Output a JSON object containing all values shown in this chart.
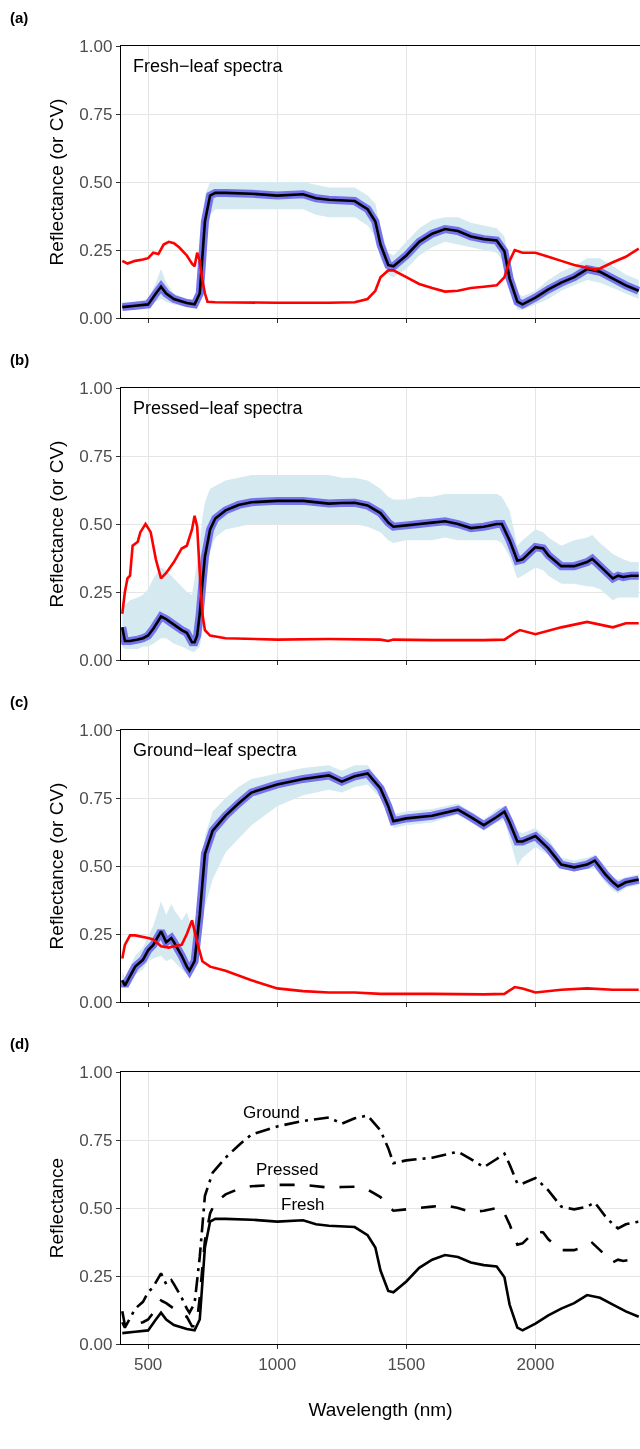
{
  "chart_data": [
    {
      "type": "line",
      "title": "Fresh−leaf spectra",
      "ylabel": "Reflectance (or CV)",
      "annotations": [
        "(a)"
      ],
      "xlim": [
        395,
        2405
      ],
      "ylim": [
        0,
        1
      ],
      "xticks": [
        500,
        1000,
        1500,
        2000
      ],
      "yticks": [
        {
          "value": 0,
          "label": "0.00"
        },
        {
          "value": 0.25,
          "label": "0.25"
        },
        {
          "value": 0.5,
          "label": "0.50"
        },
        {
          "value": 0.75,
          "label": "0.75"
        },
        {
          "value": 1,
          "label": "1.00"
        }
      ],
      "grid": true,
      "tick_labels": "y",
      "series": [
        {
          "color": "#ff0000",
          "x": [
            400,
            420,
            450,
            480,
            500,
            520,
            540,
            560,
            580,
            600,
            620,
            650,
            670,
            680,
            690,
            700,
            710,
            720,
            730,
            760,
            1000,
            1200,
            1300,
            1350,
            1380,
            1400,
            1430,
            1450,
            1500,
            1550,
            1600,
            1650,
            1700,
            1750,
            1800,
            1850,
            1880,
            1900,
            1920,
            1950,
            2000,
            2050,
            2100,
            2150,
            2200,
            2230,
            2250,
            2300,
            2350,
            2400
          ],
          "values": [
            0.21,
            0.2,
            0.21,
            0.215,
            0.22,
            0.24,
            0.235,
            0.27,
            0.28,
            0.275,
            0.26,
            0.23,
            0.2,
            0.19,
            0.24,
            0.21,
            0.14,
            0.09,
            0.06,
            0.058,
            0.056,
            0.056,
            0.058,
            0.07,
            0.1,
            0.15,
            0.175,
            0.175,
            0.15,
            0.125,
            0.11,
            0.097,
            0.1,
            0.11,
            0.115,
            0.12,
            0.15,
            0.21,
            0.25,
            0.24,
            0.24,
            0.225,
            0.21,
            0.195,
            0.185,
            0.178,
            0.182,
            0.205,
            0.225,
            0.255
          ]
        },
        {
          "color": "#000000",
          "x": [
            400,
            450,
            500,
            530,
            550,
            570,
            600,
            650,
            680,
            700,
            720,
            740,
            760,
            800,
            900,
            1000,
            1100,
            1150,
            1200,
            1300,
            1350,
            1380,
            1400,
            1430,
            1450,
            1500,
            1550,
            1600,
            1650,
            1700,
            1750,
            1800,
            1850,
            1880,
            1900,
            1930,
            1950,
            2000,
            2050,
            2100,
            2150,
            2200,
            2250,
            2300,
            2350,
            2400
          ],
          "values": [
            0.04,
            0.045,
            0.05,
            0.09,
            0.115,
            0.09,
            0.07,
            0.055,
            0.05,
            0.09,
            0.355,
            0.45,
            0.46,
            0.46,
            0.457,
            0.45,
            0.455,
            0.44,
            0.435,
            0.43,
            0.4,
            0.355,
            0.27,
            0.195,
            0.19,
            0.23,
            0.28,
            0.31,
            0.327,
            0.32,
            0.3,
            0.29,
            0.285,
            0.245,
            0.145,
            0.06,
            0.05,
            0.075,
            0.105,
            0.13,
            0.15,
            0.18,
            0.17,
            0.145,
            0.12,
            0.1
          ],
          "lower": [
            0.03,
            0.035,
            0.04,
            0.06,
            0.07,
            0.06,
            0.05,
            0.04,
            0.04,
            0.06,
            0.25,
            0.38,
            0.4,
            0.4,
            0.4,
            0.4,
            0.4,
            0.38,
            0.37,
            0.37,
            0.34,
            0.3,
            0.22,
            0.16,
            0.15,
            0.18,
            0.23,
            0.26,
            0.28,
            0.27,
            0.26,
            0.25,
            0.24,
            0.2,
            0.1,
            0.03,
            0.03,
            0.05,
            0.07,
            0.1,
            0.12,
            0.14,
            0.13,
            0.11,
            0.09,
            0.07
          ],
          "upper": [
            0.06,
            0.06,
            0.07,
            0.13,
            0.18,
            0.13,
            0.09,
            0.07,
            0.07,
            0.14,
            0.45,
            0.5,
            0.5,
            0.5,
            0.5,
            0.5,
            0.5,
            0.49,
            0.48,
            0.48,
            0.45,
            0.42,
            0.33,
            0.24,
            0.23,
            0.28,
            0.33,
            0.36,
            0.37,
            0.37,
            0.35,
            0.34,
            0.33,
            0.3,
            0.2,
            0.09,
            0.08,
            0.1,
            0.14,
            0.17,
            0.19,
            0.22,
            0.22,
            0.19,
            0.16,
            0.14
          ]
        }
      ]
    },
    {
      "type": "line",
      "title": "Pressed−leaf spectra",
      "ylabel": "Reflectance (or CV)",
      "annotations": [
        "(b)"
      ],
      "xlim": [
        395,
        2405
      ],
      "ylim": [
        0,
        1
      ],
      "xticks": [
        500,
        1000,
        1500,
        2000
      ],
      "yticks": [
        {
          "value": 0,
          "label": "0.00"
        },
        {
          "value": 0.25,
          "label": "0.25"
        },
        {
          "value": 0.5,
          "label": "0.50"
        },
        {
          "value": 0.75,
          "label": "0.75"
        },
        {
          "value": 1,
          "label": "1.00"
        }
      ],
      "grid": true,
      "tick_labels": "y",
      "series": [
        {
          "color": "#ff0000",
          "x": [
            400,
            410,
            420,
            430,
            440,
            460,
            470,
            480,
            490,
            510,
            530,
            550,
            570,
            600,
            630,
            650,
            670,
            680,
            690,
            700,
            710,
            720,
            740,
            800,
            1000,
            1200,
            1400,
            1430,
            1450,
            1600,
            1800,
            1880,
            1920,
            1940,
            2000,
            2100,
            2200,
            2300,
            2350,
            2400
          ],
          "values": [
            0.17,
            0.25,
            0.3,
            0.31,
            0.42,
            0.435,
            0.47,
            0.485,
            0.5,
            0.47,
            0.37,
            0.3,
            0.32,
            0.36,
            0.41,
            0.42,
            0.48,
            0.53,
            0.49,
            0.32,
            0.17,
            0.11,
            0.09,
            0.08,
            0.075,
            0.077,
            0.075,
            0.07,
            0.075,
            0.073,
            0.073,
            0.075,
            0.1,
            0.11,
            0.095,
            0.12,
            0.14,
            0.12,
            0.135,
            0.135
          ]
        },
        {
          "color": "#000000",
          "x": [
            400,
            410,
            430,
            460,
            480,
            500,
            520,
            550,
            570,
            600,
            630,
            650,
            670,
            680,
            690,
            700,
            710,
            720,
            740,
            760,
            800,
            850,
            900,
            1000,
            1100,
            1200,
            1250,
            1300,
            1350,
            1400,
            1430,
            1450,
            1500,
            1550,
            1600,
            1650,
            1700,
            1750,
            1800,
            1850,
            1870,
            1900,
            1930,
            1950,
            2000,
            2030,
            2050,
            2100,
            2150,
            2200,
            2220,
            2250,
            2300,
            2320,
            2340,
            2370,
            2400
          ],
          "values": [
            0.12,
            0.07,
            0.07,
            0.075,
            0.08,
            0.09,
            0.115,
            0.16,
            0.15,
            0.13,
            0.11,
            0.1,
            0.065,
            0.065,
            0.09,
            0.17,
            0.28,
            0.38,
            0.48,
            0.52,
            0.55,
            0.57,
            0.58,
            0.585,
            0.585,
            0.575,
            0.577,
            0.578,
            0.568,
            0.54,
            0.505,
            0.49,
            0.495,
            0.5,
            0.505,
            0.51,
            0.5,
            0.485,
            0.49,
            0.5,
            0.5,
            0.44,
            0.365,
            0.37,
            0.415,
            0.41,
            0.385,
            0.345,
            0.345,
            0.36,
            0.372,
            0.345,
            0.3,
            0.31,
            0.305,
            0.31,
            0.31
          ],
          "lower": [
            0.05,
            0.04,
            0.04,
            0.04,
            0.05,
            0.05,
            0.06,
            0.08,
            0.08,
            0.06,
            0.05,
            0.04,
            0.03,
            0.03,
            0.04,
            0.05,
            0.1,
            0.25,
            0.4,
            0.45,
            0.48,
            0.49,
            0.5,
            0.5,
            0.5,
            0.5,
            0.5,
            0.5,
            0.49,
            0.47,
            0.44,
            0.43,
            0.44,
            0.44,
            0.44,
            0.45,
            0.44,
            0.44,
            0.44,
            0.44,
            0.43,
            0.38,
            0.3,
            0.31,
            0.34,
            0.33,
            0.31,
            0.28,
            0.28,
            0.27,
            0.27,
            0.26,
            0.22,
            0.23,
            0.23,
            0.23,
            0.23
          ],
          "upper": [
            0.2,
            0.2,
            0.22,
            0.23,
            0.24,
            0.26,
            0.3,
            0.34,
            0.33,
            0.3,
            0.27,
            0.25,
            0.24,
            0.3,
            0.36,
            0.42,
            0.52,
            0.58,
            0.63,
            0.64,
            0.66,
            0.67,
            0.68,
            0.68,
            0.68,
            0.68,
            0.67,
            0.67,
            0.66,
            0.63,
            0.6,
            0.59,
            0.59,
            0.6,
            0.6,
            0.61,
            0.61,
            0.61,
            0.61,
            0.61,
            0.6,
            0.55,
            0.42,
            0.44,
            0.48,
            0.47,
            0.45,
            0.42,
            0.44,
            0.45,
            0.46,
            0.43,
            0.39,
            0.38,
            0.37,
            0.36,
            0.36
          ]
        }
      ]
    },
    {
      "type": "line",
      "title": "Ground−leaf spectra",
      "ylabel": "Reflectance (or CV)",
      "annotations": [
        "(c)"
      ],
      "xlim": [
        395,
        2405
      ],
      "ylim": [
        0,
        1
      ],
      "xticks": [
        500,
        1000,
        1500,
        2000
      ],
      "yticks": [
        {
          "value": 0,
          "label": "0.00"
        },
        {
          "value": 0.25,
          "label": "0.25"
        },
        {
          "value": 0.5,
          "label": "0.50"
        },
        {
          "value": 0.75,
          "label": "0.75"
        },
        {
          "value": 1,
          "label": "1.00"
        }
      ],
      "grid": true,
      "tick_labels": "y",
      "series": [
        {
          "color": "#ff0000",
          "x": [
            400,
            410,
            430,
            450,
            500,
            520,
            550,
            580,
            600,
            630,
            650,
            670,
            690,
            710,
            740,
            800,
            900,
            1000,
            1100,
            1200,
            1300,
            1400,
            1500,
            1600,
            1800,
            1880,
            1920,
            1950,
            2000,
            2100,
            2200,
            2300,
            2400
          ],
          "values": [
            0.16,
            0.21,
            0.245,
            0.245,
            0.235,
            0.23,
            0.205,
            0.2,
            0.205,
            0.21,
            0.25,
            0.3,
            0.22,
            0.15,
            0.13,
            0.115,
            0.08,
            0.05,
            0.04,
            0.035,
            0.035,
            0.03,
            0.03,
            0.03,
            0.028,
            0.03,
            0.055,
            0.05,
            0.035,
            0.045,
            0.05,
            0.045,
            0.045
          ]
        },
        {
          "color": "#000000",
          "x": [
            400,
            410,
            450,
            480,
            500,
            520,
            550,
            570,
            590,
            600,
            630,
            650,
            660,
            680,
            700,
            720,
            750,
            800,
            850,
            900,
            1000,
            1100,
            1200,
            1250,
            1300,
            1350,
            1400,
            1430,
            1450,
            1500,
            1600,
            1700,
            1750,
            1800,
            1850,
            1880,
            1900,
            1930,
            1950,
            2000,
            2050,
            2100,
            2150,
            2200,
            2230,
            2270,
            2300,
            2320,
            2350,
            2400
          ],
          "values": [
            0.08,
            0.06,
            0.13,
            0.155,
            0.19,
            0.21,
            0.26,
            0.22,
            0.235,
            0.22,
            0.17,
            0.13,
            0.115,
            0.15,
            0.32,
            0.545,
            0.63,
            0.685,
            0.73,
            0.77,
            0.8,
            0.82,
            0.833,
            0.81,
            0.83,
            0.84,
            0.785,
            0.72,
            0.665,
            0.675,
            0.685,
            0.707,
            0.68,
            0.65,
            0.68,
            0.7,
            0.66,
            0.59,
            0.59,
            0.61,
            0.565,
            0.505,
            0.495,
            0.505,
            0.52,
            0.47,
            0.44,
            0.425,
            0.44,
            0.45
          ],
          "lower": [
            0.06,
            0.05,
            0.1,
            0.12,
            0.15,
            0.16,
            0.17,
            0.15,
            0.16,
            0.15,
            0.12,
            0.1,
            0.09,
            0.12,
            0.22,
            0.35,
            0.45,
            0.55,
            0.6,
            0.65,
            0.72,
            0.76,
            0.78,
            0.77,
            0.79,
            0.8,
            0.75,
            0.69,
            0.64,
            0.65,
            0.66,
            0.69,
            0.66,
            0.63,
            0.66,
            0.67,
            0.6,
            0.5,
            0.53,
            0.57,
            0.54,
            0.49,
            0.48,
            0.49,
            0.49,
            0.44,
            0.41,
            0.4,
            0.42,
            0.43
          ],
          "upper": [
            0.11,
            0.09,
            0.17,
            0.2,
            0.24,
            0.28,
            0.37,
            0.32,
            0.36,
            0.34,
            0.3,
            0.33,
            0.3,
            0.25,
            0.4,
            0.61,
            0.7,
            0.75,
            0.79,
            0.82,
            0.84,
            0.86,
            0.87,
            0.85,
            0.87,
            0.87,
            0.81,
            0.75,
            0.69,
            0.7,
            0.71,
            0.73,
            0.7,
            0.67,
            0.71,
            0.72,
            0.69,
            0.63,
            0.62,
            0.64,
            0.6,
            0.53,
            0.52,
            0.53,
            0.54,
            0.5,
            0.46,
            0.45,
            0.46,
            0.47
          ]
        }
      ]
    },
    {
      "type": "line",
      "xlabel": "Wavelength (nm)",
      "ylabel": "Reflectance",
      "annotations": [
        "(d)"
      ],
      "xlim": [
        395,
        2405
      ],
      "ylim": [
        0,
        1
      ],
      "xticks": [
        500,
        1000,
        1500,
        2000
      ],
      "yticks": [
        {
          "value": 0,
          "label": "0.00"
        },
        {
          "value": 0.25,
          "label": "0.25"
        },
        {
          "value": 0.5,
          "label": "0.50"
        },
        {
          "value": 0.75,
          "label": "0.75"
        },
        {
          "value": 1,
          "label": "1.00"
        }
      ],
      "grid": true,
      "series": [
        {
          "name": "Ground",
          "color": "#000000",
          "line_style": "dashdot",
          "x": [
            400,
            410,
            450,
            480,
            500,
            520,
            550,
            570,
            590,
            600,
            630,
            650,
            660,
            680,
            700,
            720,
            750,
            800,
            850,
            900,
            1000,
            1100,
            1200,
            1250,
            1300,
            1350,
            1400,
            1430,
            1450,
            1500,
            1600,
            1700,
            1750,
            1800,
            1850,
            1880,
            1900,
            1930,
            1950,
            2000,
            2050,
            2100,
            2150,
            2200,
            2230,
            2270,
            2300,
            2320,
            2350,
            2400
          ],
          "values": [
            0.08,
            0.06,
            0.13,
            0.155,
            0.19,
            0.21,
            0.26,
            0.22,
            0.235,
            0.22,
            0.17,
            0.13,
            0.115,
            0.15,
            0.32,
            0.545,
            0.63,
            0.685,
            0.73,
            0.77,
            0.8,
            0.82,
            0.833,
            0.81,
            0.83,
            0.84,
            0.785,
            0.72,
            0.665,
            0.675,
            0.685,
            0.707,
            0.68,
            0.65,
            0.68,
            0.7,
            0.66,
            0.59,
            0.59,
            0.61,
            0.565,
            0.505,
            0.495,
            0.505,
            0.52,
            0.47,
            0.44,
            0.425,
            0.44,
            0.45
          ]
        },
        {
          "name": "Pressed",
          "color": "#000000",
          "line_style": "dashed",
          "x": [
            400,
            410,
            430,
            460,
            480,
            500,
            520,
            550,
            570,
            600,
            630,
            650,
            670,
            680,
            690,
            700,
            710,
            720,
            740,
            760,
            800,
            850,
            900,
            1000,
            1100,
            1200,
            1250,
            1300,
            1350,
            1400,
            1430,
            1450,
            1500,
            1550,
            1600,
            1650,
            1700,
            1750,
            1800,
            1850,
            1870,
            1900,
            1930,
            1950,
            2000,
            2030,
            2050,
            2100,
            2150,
            2200,
            2220,
            2250,
            2300,
            2320,
            2340,
            2370
          ],
          "values": [
            0.12,
            0.07,
            0.07,
            0.075,
            0.08,
            0.09,
            0.115,
            0.16,
            0.15,
            0.13,
            0.11,
            0.1,
            0.065,
            0.065,
            0.09,
            0.17,
            0.28,
            0.38,
            0.48,
            0.52,
            0.55,
            0.57,
            0.58,
            0.585,
            0.585,
            0.575,
            0.577,
            0.578,
            0.568,
            0.54,
            0.505,
            0.49,
            0.495,
            0.5,
            0.505,
            0.51,
            0.5,
            0.485,
            0.49,
            0.5,
            0.5,
            0.44,
            0.365,
            0.37,
            0.415,
            0.41,
            0.385,
            0.345,
            0.345,
            0.36,
            0.372,
            0.345,
            0.3,
            0.31,
            0.305,
            0.31
          ]
        },
        {
          "name": "Fresh",
          "color": "#000000",
          "line_style": "solid",
          "x": [
            400,
            450,
            500,
            530,
            550,
            570,
            600,
            650,
            680,
            700,
            720,
            740,
            760,
            800,
            900,
            1000,
            1100,
            1150,
            1200,
            1300,
            1350,
            1380,
            1400,
            1430,
            1450,
            1500,
            1550,
            1600,
            1650,
            1700,
            1750,
            1800,
            1850,
            1880,
            1900,
            1930,
            1950,
            2000,
            2050,
            2100,
            2150,
            2200,
            2250,
            2300,
            2350,
            2400
          ],
          "values": [
            0.04,
            0.045,
            0.05,
            0.09,
            0.115,
            0.09,
            0.07,
            0.055,
            0.05,
            0.09,
            0.355,
            0.45,
            0.46,
            0.46,
            0.457,
            0.45,
            0.455,
            0.44,
            0.435,
            0.43,
            0.4,
            0.355,
            0.27,
            0.195,
            0.19,
            0.23,
            0.28,
            0.31,
            0.327,
            0.32,
            0.3,
            0.29,
            0.285,
            0.245,
            0.145,
            0.06,
            0.05,
            0.075,
            0.105,
            0.13,
            0.15,
            0.18,
            0.17,
            0.145,
            0.12,
            0.1
          ]
        }
      ]
    }
  ]
}
